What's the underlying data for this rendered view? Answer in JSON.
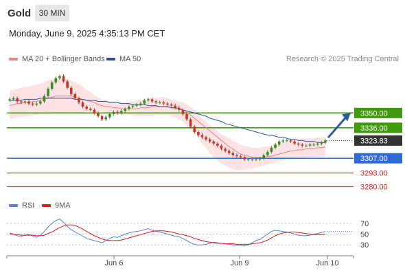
{
  "header": {
    "instrument": "Gold",
    "timeframe": "30 MIN",
    "datetime": "Monday, June 9, 2025 4:35:13 PM CET"
  },
  "legend": {
    "ma20": "MA 20 + Bollinger Bands",
    "ma50": "MA 50",
    "credit": "Research © 2025 Trading Central"
  },
  "rsi_legend": {
    "rsi": "RSI",
    "ma": "9MA"
  },
  "colors": {
    "ma20": "#f08080",
    "ma50": "#24549a",
    "band": "#fde3e3",
    "resistance": "#3f9a0e",
    "support": "#2e6bd6",
    "support_minor": "#d81e1e",
    "last_price": "#333333",
    "bull_candle": "#3a8a2a",
    "bear_candle": "#c0392b",
    "rsi": "#5b7fd6",
    "rsi_ma": "#e0191a"
  },
  "chart_data": [
    {
      "type": "candlestick",
      "x_labels": [
        "Jun 6",
        "Jun 9",
        "Jun 10"
      ],
      "y_range": [
        3268,
        3392
      ],
      "levels": [
        {
          "label": "3350.00",
          "value": 3350.0,
          "kind": "resistance"
        },
        {
          "label": "3336.00",
          "value": 3336.0,
          "kind": "resistance"
        },
        {
          "label": "3323.83",
          "value": 3323.83,
          "kind": "last"
        },
        {
          "label": "3307.00",
          "value": 3307.0,
          "kind": "support"
        },
        {
          "label": "3293.00",
          "value": 3293.0,
          "kind": "support_minor"
        },
        {
          "label": "3280.00",
          "value": 3280.0,
          "kind": "support_minor"
        }
      ],
      "forecast_target": 3350.0,
      "close": [
        3363,
        3364,
        3361,
        3360,
        3361,
        3359,
        3358,
        3359,
        3361,
        3366,
        3373,
        3379,
        3383,
        3385,
        3380,
        3374,
        3368,
        3364,
        3360,
        3356,
        3354,
        3353,
        3350,
        3347,
        3344,
        3346,
        3349,
        3351,
        3350,
        3352,
        3354,
        3356,
        3357,
        3358,
        3359,
        3362,
        3363,
        3361,
        3360,
        3360,
        3359,
        3358,
        3357,
        3355,
        3353,
        3349,
        3344,
        3337,
        3332,
        3329,
        3327,
        3325,
        3323,
        3321,
        3319,
        3316,
        3314,
        3312,
        3310,
        3309,
        3308,
        3306,
        3306,
        3306,
        3306,
        3307,
        3310,
        3313,
        3317,
        3320,
        3323,
        3324,
        3324,
        3323,
        3321,
        3320,
        3319,
        3319,
        3320,
        3320,
        3321,
        3322,
        3324
      ],
      "ma20": [
        3357,
        3358,
        3359,
        3359,
        3360,
        3360,
        3361,
        3361,
        3362,
        3363,
        3364,
        3365,
        3366,
        3366,
        3366,
        3366,
        3366,
        3365,
        3364,
        3363,
        3362,
        3361,
        3360,
        3358,
        3357,
        3356,
        3356,
        3355,
        3355,
        3354,
        3354,
        3354,
        3354,
        3354,
        3355,
        3355,
        3355,
        3356,
        3356,
        3356,
        3356,
        3356,
        3355,
        3355,
        3354,
        3353,
        3351,
        3348,
        3345,
        3342,
        3339,
        3336,
        3333,
        3330,
        3327,
        3324,
        3321,
        3318,
        3316,
        3313,
        3311,
        3310,
        3309,
        3308,
        3308,
        3308,
        3308,
        3309,
        3309,
        3310,
        3311,
        3312,
        3313,
        3314,
        3314,
        3315,
        3315,
        3316,
        3316,
        3316,
        3317,
        3317,
        3318
      ],
      "ma50": [
        3362,
        3362,
        3362,
        3362,
        3363,
        3363,
        3363,
        3363,
        3364,
        3364,
        3364,
        3364,
        3364,
        3364,
        3364,
        3364,
        3364,
        3363,
        3363,
        3363,
        3362,
        3362,
        3362,
        3361,
        3361,
        3361,
        3360,
        3360,
        3360,
        3359,
        3359,
        3359,
        3358,
        3358,
        3358,
        3358,
        3357,
        3357,
        3357,
        3356,
        3356,
        3356,
        3355,
        3355,
        3354,
        3353,
        3352,
        3351,
        3350,
        3349,
        3348,
        3347,
        3345,
        3344,
        3343,
        3342,
        3340,
        3339,
        3338,
        3337,
        3336,
        3335,
        3334,
        3333,
        3332,
        3331,
        3330,
        3329,
        3329,
        3328,
        3327,
        3327,
        3326,
        3325,
        3325,
        3324,
        3324,
        3323,
        3323,
        3323,
        3322,
        3322,
        3322
      ],
      "band_upper": [
        3371,
        3372,
        3373,
        3374,
        3375,
        3375,
        3376,
        3377,
        3378,
        3379,
        3381,
        3382,
        3383,
        3383,
        3383,
        3382,
        3381,
        3379,
        3377,
        3375,
        3372,
        3370,
        3367,
        3365,
        3363,
        3362,
        3361,
        3361,
        3360,
        3360,
        3360,
        3361,
        3361,
        3362,
        3362,
        3363,
        3364,
        3364,
        3364,
        3365,
        3365,
        3364,
        3363,
        3362,
        3361,
        3360,
        3358,
        3356,
        3353,
        3349,
        3345,
        3342,
        3339,
        3336,
        3333,
        3330,
        3328,
        3326,
        3324,
        3322,
        3320,
        3319,
        3318,
        3317,
        3317,
        3317,
        3318,
        3318,
        3319,
        3320,
        3321,
        3322,
        3323,
        3324,
        3325,
        3325,
        3326,
        3326,
        3326,
        3326,
        3327,
        3327,
        3327
      ],
      "band_lower": [
        3344,
        3345,
        3346,
        3346,
        3347,
        3347,
        3348,
        3348,
        3349,
        3349,
        3349,
        3350,
        3350,
        3350,
        3350,
        3350,
        3350,
        3350,
        3350,
        3350,
        3351,
        3351,
        3351,
        3351,
        3351,
        3350,
        3350,
        3350,
        3350,
        3349,
        3349,
        3348,
        3348,
        3347,
        3347,
        3347,
        3347,
        3347,
        3348,
        3348,
        3348,
        3348,
        3347,
        3346,
        3344,
        3342,
        3338,
        3334,
        3330,
        3326,
        3321,
        3317,
        3312,
        3308,
        3305,
        3302,
        3300,
        3298,
        3297,
        3296,
        3296,
        3296,
        3297,
        3297,
        3298,
        3299,
        3300,
        3301,
        3302,
        3303,
        3304,
        3305,
        3306,
        3306,
        3307,
        3307,
        3307,
        3308,
        3308,
        3308,
        3308,
        3309,
        3309
      ]
    },
    {
      "type": "line",
      "title": "RSI",
      "y_ticks": [
        70,
        50,
        30
      ],
      "series": [
        {
          "name": "RSI",
          "values": [
            52,
            50,
            47,
            45,
            48,
            50,
            46,
            44,
            48,
            55,
            63,
            70,
            75,
            78,
            72,
            64,
            58,
            54,
            50,
            46,
            42,
            40,
            38,
            36,
            34,
            38,
            42,
            45,
            44,
            47,
            50,
            52,
            54,
            55,
            56,
            58,
            60,
            57,
            55,
            54,
            52,
            50,
            48,
            46,
            45,
            42,
            38,
            34,
            31,
            30,
            30,
            31,
            33,
            35,
            34,
            33,
            32,
            31,
            30,
            29,
            29,
            28,
            30,
            34,
            38,
            40,
            45,
            50,
            55,
            57,
            56,
            55,
            54,
            52,
            50,
            48,
            47,
            47,
            48,
            50,
            51,
            53,
            55
          ]
        },
        {
          "name": "9MA",
          "values": [
            50,
            50,
            49,
            48,
            48,
            48,
            48,
            47,
            47,
            48,
            51,
            54,
            58,
            62,
            65,
            67,
            67,
            66,
            63,
            59,
            55,
            51,
            47,
            44,
            41,
            39,
            38,
            38,
            38,
            39,
            41,
            43,
            45,
            47,
            49,
            51,
            53,
            55,
            56,
            56,
            56,
            55,
            54,
            52,
            50,
            49,
            47,
            45,
            42,
            40,
            38,
            36,
            35,
            34,
            33,
            33,
            32,
            32,
            32,
            31,
            31,
            31,
            31,
            32,
            33,
            34,
            36,
            39,
            43,
            47,
            50,
            52,
            53,
            54,
            54,
            53,
            52,
            51,
            50,
            49,
            49,
            49,
            50
          ]
        }
      ]
    }
  ]
}
